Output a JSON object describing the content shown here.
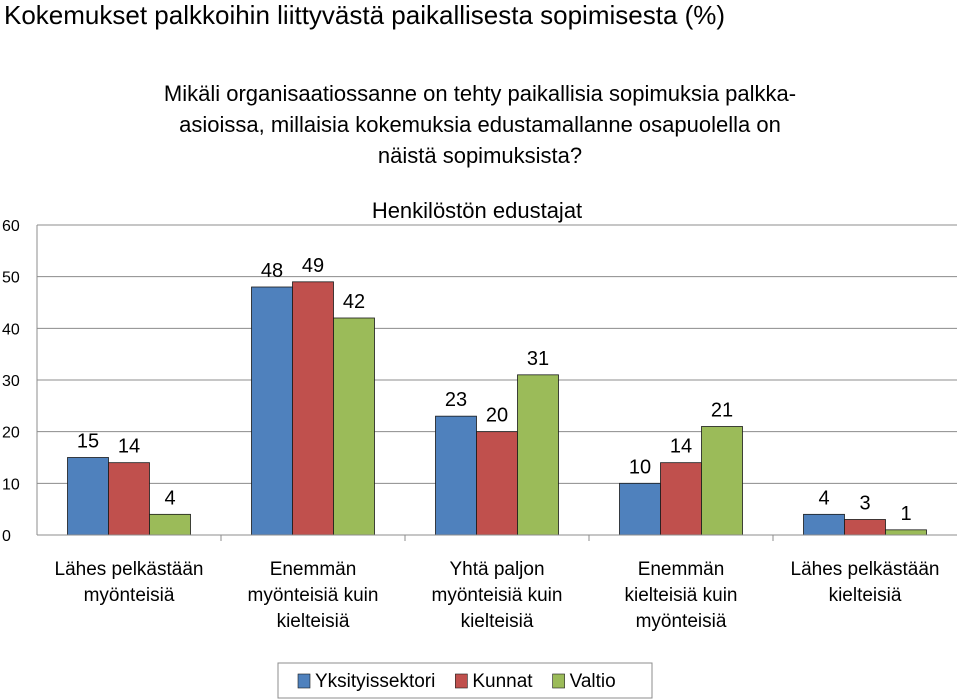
{
  "page": {
    "title": "Kokemukset palkkoihin liittyvästä paikallisesta sopimisesta (%)",
    "question_lines": [
      "Mikäli organisaatiossanne on tehty paikallisia sopimuksia palkka-",
      "asioissa, millaisia kokemuksia edustamallanne osapuolella on",
      "näistä sopimuksista?"
    ]
  },
  "chart_data": {
    "type": "bar",
    "title": "Henkilöstön edustajat",
    "xlabel": "",
    "ylabel": "",
    "ylim": [
      0,
      60
    ],
    "yticks": [
      0,
      10,
      20,
      30,
      40,
      50,
      60
    ],
    "grid": true,
    "legend_position": "bottom",
    "categories": [
      [
        "Lähes pelkästään",
        "myönteisiä"
      ],
      [
        "Enemmän",
        "myönteisiä kuin",
        "kielteisiä"
      ],
      [
        "Yhtä paljon",
        "myönteisiä kuin",
        "kielteisiä"
      ],
      [
        "Enemmän",
        "kielteisiä kuin",
        "myönteisiä"
      ],
      [
        "Lähes pelkästään",
        "kielteisiä"
      ]
    ],
    "series": [
      {
        "name": "Yksityissektori",
        "color": "#4F81BD",
        "values": [
          15,
          48,
          23,
          10,
          4
        ]
      },
      {
        "name": "Kunnat",
        "color": "#C0504D",
        "values": [
          14,
          49,
          20,
          14,
          3
        ]
      },
      {
        "name": "Valtio",
        "color": "#9BBB59",
        "values": [
          4,
          42,
          31,
          21,
          1
        ]
      }
    ]
  }
}
